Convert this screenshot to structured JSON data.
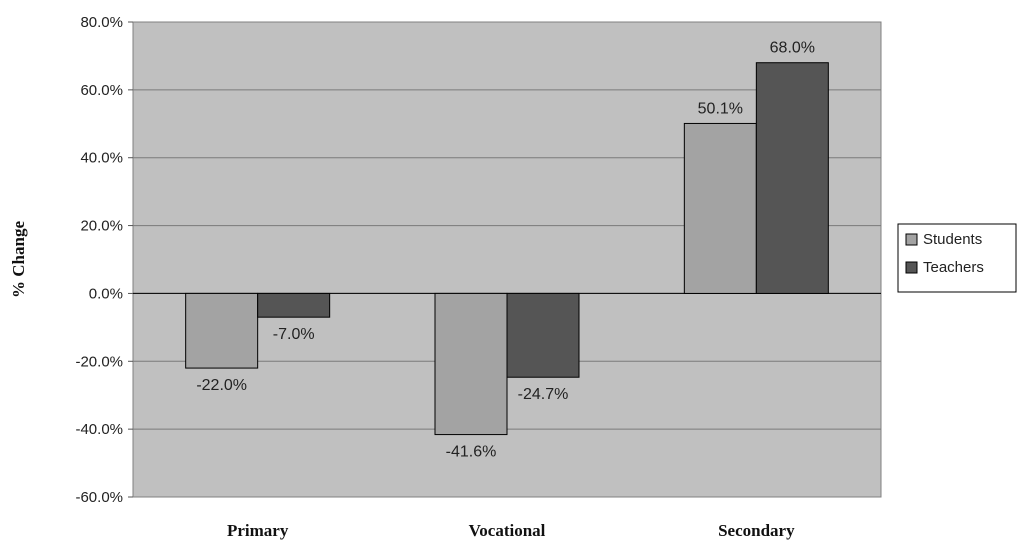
{
  "chart_data": {
    "type": "bar",
    "categories": [
      "Primary",
      "Vocational",
      "Secondary"
    ],
    "series": [
      {
        "name": "Students",
        "values": [
          -22.0,
          -41.6,
          50.1
        ],
        "labels": [
          "-22.0%",
          "-41.6%",
          "50.1%"
        ],
        "color": "#a3a3a3"
      },
      {
        "name": "Teachers",
        "values": [
          -7.0,
          -24.7,
          68.0
        ],
        "labels": [
          "-7.0%",
          "-24.7%",
          "68.0%"
        ],
        "color": "#555555"
      }
    ],
    "ylabel": "% Change",
    "ylim": [
      -60,
      80
    ],
    "yticks": [
      80,
      60,
      40,
      20,
      0,
      -20,
      -40,
      -60
    ],
    "ytick_labels": [
      "80.0%",
      "60.0%",
      "40.0%",
      "20.0%",
      "0.0%",
      "-20.0%",
      "-40.0%",
      "-60.0%"
    ],
    "grid": true,
    "legend": "right",
    "plot_background": "#c0c0c0"
  }
}
